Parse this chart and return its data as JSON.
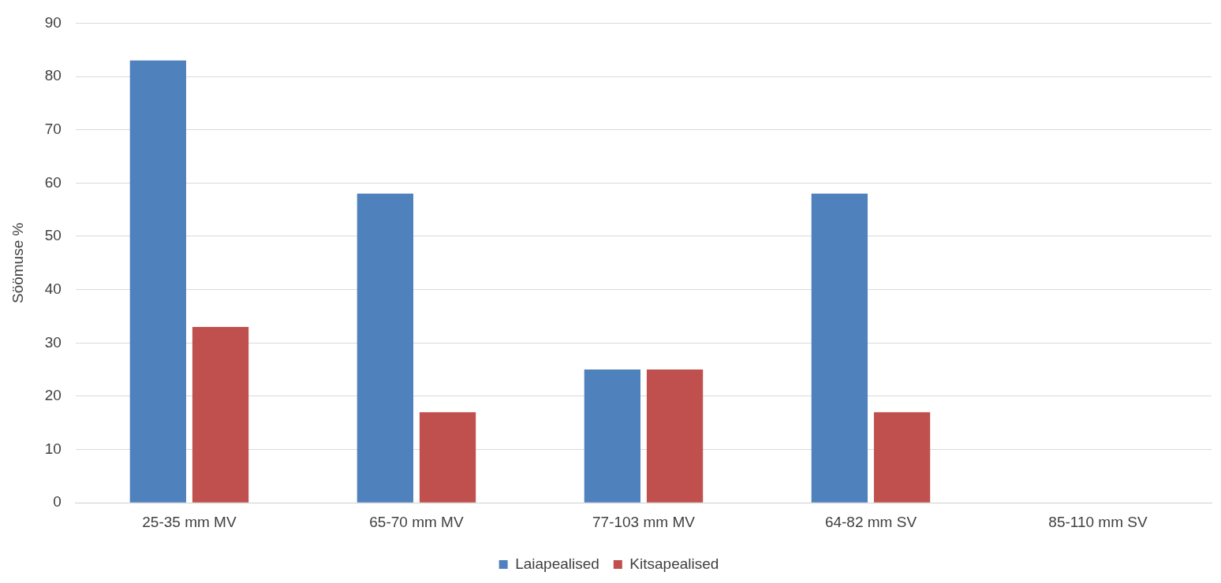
{
  "chart_data": {
    "type": "bar",
    "ylabel": "Söömuse %",
    "categories": [
      "25-35 mm MV",
      "65-70 mm MV",
      "77-103 mm MV",
      "64-82 mm SV",
      "85-110 mm SV"
    ],
    "series": [
      {
        "name": "Laiapealised",
        "color": "#4f81bd",
        "values": [
          83,
          58,
          25,
          58,
          0
        ]
      },
      {
        "name": "Kitsapealised",
        "color": "#c0504d",
        "values": [
          33,
          17,
          25,
          17,
          0
        ]
      }
    ],
    "ylim": [
      0,
      90
    ],
    "yticks": [
      0,
      10,
      20,
      30,
      40,
      50,
      60,
      70,
      80,
      90
    ],
    "grid": "y",
    "legend": "bottom"
  }
}
